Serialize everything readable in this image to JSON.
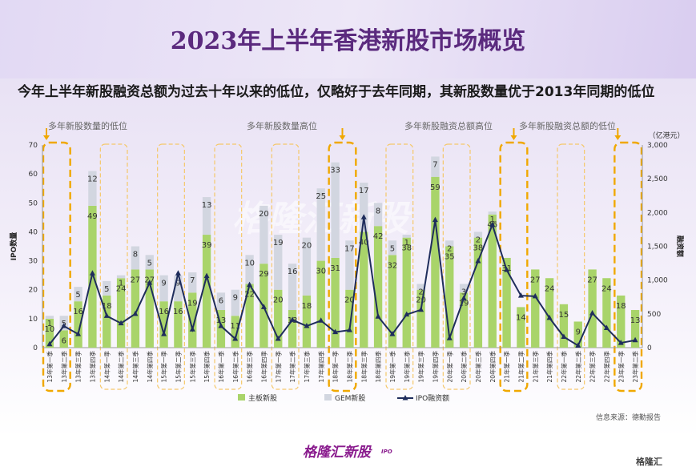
{
  "title": "2023年上半年香港新股市场概览",
  "subtitle": "今年上半年新股融资总额为过去十年以来的低位，仅略好于去年同期，其新股数量优于2013年同期的低位",
  "source_note": "信息来源：德勤报告",
  "brand_name": "格隆汇新股",
  "brand_sub": "IPO",
  "corner_logo": "格隆汇",
  "watermark": "格隆汇新股",
  "chart_data": {
    "type": "bar",
    "stacked": true,
    "categories": [
      "13年第一季",
      "13年第二季",
      "13年第三季",
      "13年第四季",
      "14年第一季",
      "14年第二季",
      "14年第三季",
      "14年第四季",
      "15年第一季",
      "15年第二季",
      "15年第三季",
      "15年第四季",
      "16年第一季",
      "16年第二季",
      "16年第三季",
      "16年第四季",
      "17年第一季",
      "17年第二季",
      "17年第三季",
      "17年第四季",
      "18年第一季",
      "18年第二季",
      "18年第三季",
      "18年第四季",
      "19年第一季",
      "19年第二季",
      "19年第三季",
      "19年第四季",
      "20年第一季",
      "20年第二季",
      "20年第三季",
      "20年第四季",
      "21年第一季",
      "21年第二季",
      "21年第三季",
      "21年第四季",
      "22年第一季",
      "22年第二季",
      "22年第三季",
      "22年第四季",
      "23年第一季",
      "23年第二季"
    ],
    "series": [
      {
        "name": "主板新股",
        "color": "#a9d46a",
        "values": [
          10,
          6,
          16,
          49,
          18,
          24,
          27,
          27,
          16,
          16,
          19,
          39,
          13,
          11,
          22,
          29,
          20,
          13,
          18,
          30,
          31,
          20,
          40,
          42,
          32,
          38,
          20,
          59,
          35,
          19,
          38,
          46,
          31,
          14,
          27,
          24,
          15,
          9,
          27,
          24,
          18,
          13
        ]
      },
      {
        "name": "GEM新股",
        "color": "#d2d6e0",
        "values": [
          1,
          5,
          5,
          12,
          5,
          1,
          8,
          5,
          9,
          9,
          7,
          13,
          6,
          9,
          10,
          20,
          19,
          16,
          20,
          25,
          33,
          17,
          17,
          8,
          5,
          1,
          2,
          7,
          2,
          3,
          2,
          1,
          0,
          0,
          0,
          0,
          0,
          0,
          0,
          0,
          0,
          0
        ]
      },
      {
        "name": "IPO融资额",
        "color": "#1f2d5c",
        "type": "line",
        "axis": "right",
        "values": [
          50,
          320,
          200,
          1100,
          470,
          360,
          500,
          960,
          200,
          1100,
          270,
          1060,
          320,
          130,
          930,
          600,
          130,
          410,
          320,
          400,
          230,
          260,
          1930,
          460,
          200,
          490,
          560,
          1890,
          140,
          730,
          1280,
          1820,
          1150,
          770,
          760,
          440,
          160,
          30,
          510,
          290,
          70,
          110
        ]
      }
    ],
    "value_labels": {
      "主板新股": [
        "10",
        "6",
        "16",
        "49",
        "18",
        "24",
        "27",
        "27",
        "16",
        "16",
        "19",
        "39",
        "13",
        "11",
        "22",
        "29",
        "20",
        "13",
        "18",
        "30",
        "31",
        "20",
        "40",
        "42",
        "32",
        "38",
        "20",
        "59",
        "35",
        "19",
        "38",
        "46",
        "31",
        "14",
        "27",
        "24",
        "15",
        "9",
        "27",
        "24",
        "18",
        "13"
      ],
      "GEM新股": [
        "1",
        "5",
        "5",
        "12",
        "5",
        "1",
        "8",
        "5",
        "9",
        "9",
        "7",
        "13",
        "6",
        "9",
        "10",
        "20",
        "19",
        "16",
        "20",
        "25",
        "33",
        "17",
        "17",
        "8",
        "5",
        "1",
        "2",
        "7",
        "2",
        "3",
        "2",
        "1",
        "",
        "",
        "",
        "",
        "",
        "",
        "",
        "",
        "",
        ""
      ]
    },
    "y_left": {
      "label": "IPO数量",
      "min": 0,
      "max": 70,
      "ticks": [
        "0",
        "10",
        "20",
        "30",
        "40",
        "50",
        "60",
        "70"
      ]
    },
    "y_right": {
      "label": "融资额",
      "unit": "（亿港元）",
      "min": 0,
      "max": 3000,
      "ticks": [
        "0",
        "500",
        "1,000",
        "1,500",
        "2,000",
        "2,500",
        "3,000"
      ]
    },
    "grid": false,
    "legend_position": "bottom",
    "highlight_groups": [
      {
        "label": "多年新股数量的低位",
        "range": [
          0,
          1
        ],
        "color": "#f0a800"
      },
      {
        "label": "多年新股数量高位",
        "range": [
          20,
          21
        ],
        "color": "#f0a800"
      },
      {
        "label": "多年新股融资总额高位",
        "range": [
          32,
          33
        ],
        "color": "#f0a800"
      },
      {
        "label": "多年新股融资总额的低位",
        "range": [
          40,
          41
        ],
        "color": "#f0a800"
      }
    ],
    "h1_boxes": [
      [
        4,
        5
      ],
      [
        8,
        9
      ],
      [
        12,
        13
      ],
      [
        16,
        17
      ],
      [
        24,
        25
      ],
      [
        28,
        29
      ],
      [
        36,
        37
      ]
    ],
    "h1_box_color": "#f5c86a"
  }
}
